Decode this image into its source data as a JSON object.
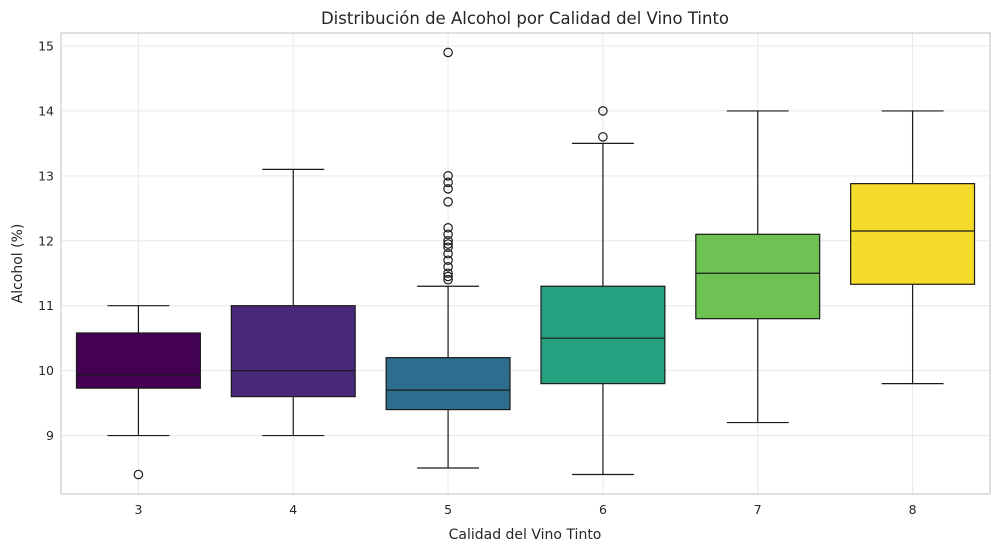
{
  "chart_data": {
    "type": "box",
    "title": "Distribución de Alcohol por Calidad del Vino Tinto",
    "xlabel": "Calidad del Vino Tinto",
    "ylabel": "Alcohol (%)",
    "ylim": [
      8.1,
      15.2
    ],
    "yticks": [
      9,
      10,
      11,
      12,
      13,
      14,
      15
    ],
    "grid": true,
    "categories": [
      "3",
      "4",
      "5",
      "6",
      "7",
      "8"
    ],
    "boxes": [
      {
        "category": "3",
        "color": "#440154",
        "whisker_low": 9.0,
        "q1": 9.73,
        "median": 9.93,
        "q3": 10.58,
        "whisker_high": 11.0,
        "outliers": [
          8.4
        ]
      },
      {
        "category": "4",
        "color": "#482878",
        "whisker_low": 9.0,
        "q1": 9.6,
        "median": 10.0,
        "q3": 11.0,
        "whisker_high": 13.1,
        "outliers": []
      },
      {
        "category": "5",
        "color": "#2d6e8e",
        "whisker_low": 8.5,
        "q1": 9.4,
        "median": 9.7,
        "q3": 10.2,
        "whisker_high": 11.3,
        "outliers": [
          11.4,
          11.45,
          11.5,
          11.6,
          11.7,
          11.8,
          11.9,
          11.95,
          12.0,
          12.1,
          12.2,
          12.6,
          12.8,
          12.9,
          13.0,
          14.9
        ]
      },
      {
        "category": "6",
        "color": "#25a17f",
        "whisker_low": 8.4,
        "q1": 9.8,
        "median": 10.5,
        "q3": 11.3,
        "whisker_high": 13.5,
        "outliers": [
          13.6,
          14.0
        ]
      },
      {
        "category": "7",
        "color": "#6ec153",
        "whisker_low": 9.2,
        "q1": 10.8,
        "median": 11.5,
        "q3": 12.1,
        "whisker_high": 14.0,
        "outliers": []
      },
      {
        "category": "8",
        "color": "#f5dc2a",
        "whisker_low": 9.8,
        "q1": 11.33,
        "median": 12.15,
        "q3": 12.88,
        "whisker_high": 14.0,
        "outliers": []
      }
    ]
  }
}
